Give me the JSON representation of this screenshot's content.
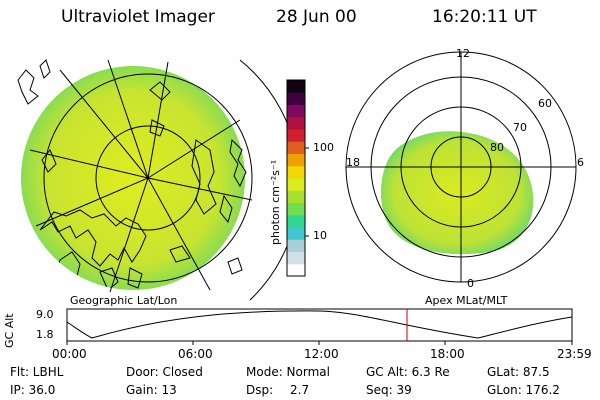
{
  "header": {
    "title": "Ultraviolet Imager",
    "date": "28 Jun 00",
    "time": "16:20:11 UT"
  },
  "left_panel": {
    "caption": "Geographic Lat/Lon"
  },
  "colorbar": {
    "unit_label": "photon cm⁻²s⁻¹",
    "ticks": [
      "100",
      "10"
    ],
    "colors": [
      "#ffffff",
      "#d0e0e6",
      "#a8d0da",
      "#40c8d0",
      "#30d890",
      "#70e050",
      "#a8e030",
      "#d8ec20",
      "#f0d800",
      "#f0a000",
      "#e06020",
      "#d02030",
      "#b01040",
      "#800860",
      "#400040",
      "#100010"
    ]
  },
  "right_panel": {
    "caption": "Apex MLat/MLT",
    "mlt_labels": {
      "top": "12",
      "left": "18",
      "right": "6",
      "bottom": "0"
    },
    "lat_labels": [
      "60",
      "70",
      "80"
    ]
  },
  "altitude_plot": {
    "ylabel": "GC Alt",
    "yticks": [
      "9.0",
      "1.8"
    ],
    "xticks": [
      "00:00",
      "06:00",
      "12:00",
      "18:00",
      "23:59"
    ],
    "marker_color": "#c00000"
  },
  "status": {
    "row1": {
      "flt": "Flt: LBHL",
      "door": "Door: Closed",
      "mode": "Mode: Normal",
      "gc_alt": "GC Alt: 6.3 Re",
      "glat": "GLat:  87.5"
    },
    "row2": {
      "ip": "IP: 36.0",
      "gain": "Gain: 13",
      "dsp_label": "Dsp:",
      "dsp_value": "2.7",
      "seq": "Seq: 39",
      "glon": "GLon: 176.2"
    }
  }
}
